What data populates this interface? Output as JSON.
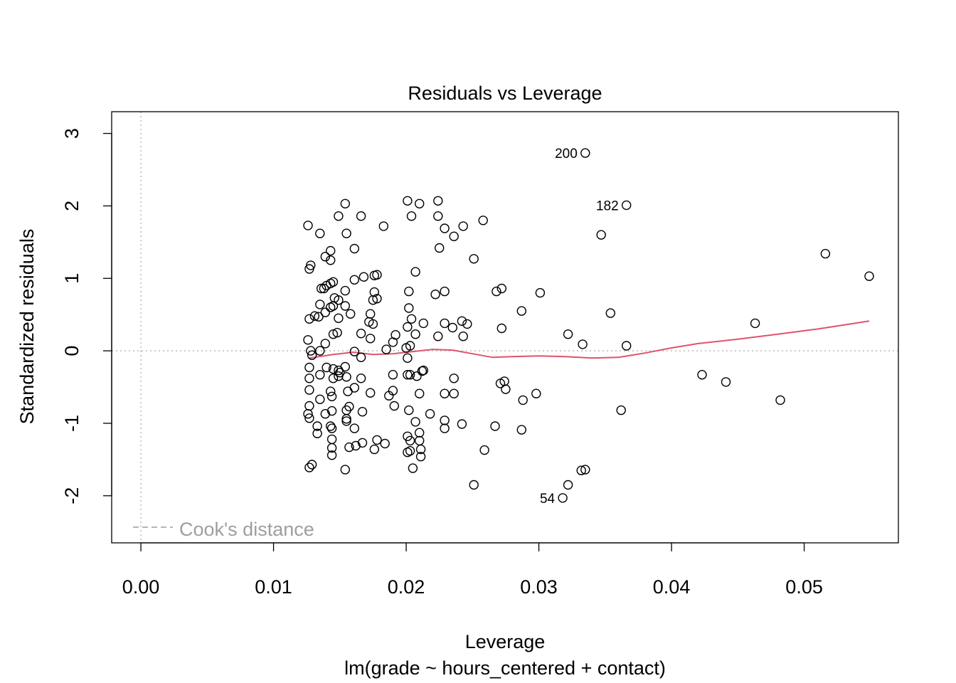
{
  "chart_data": {
    "type": "scatter",
    "title": "Residuals vs Leverage",
    "xlabel": "Leverage",
    "subtitle": "lm(grade ~ hours_centered + contact)",
    "ylabel": "Standardized residuals",
    "xlim": [
      -0.0022,
      0.0571
    ],
    "ylim": [
      -2.65,
      3.3
    ],
    "x_ticks": [
      0.0,
      0.01,
      0.02,
      0.03,
      0.04,
      0.05
    ],
    "x_tick_labels": [
      "0.00",
      "0.01",
      "0.02",
      "0.03",
      "0.04",
      "0.05"
    ],
    "y_ticks": [
      -2,
      -1,
      0,
      1,
      2,
      3
    ],
    "y_tick_labels": [
      "-2",
      "-1",
      "0",
      "1",
      "2",
      "3"
    ],
    "grid": false,
    "reference_lines": {
      "vertical_x": 0.0,
      "horizontal_y": 0.0,
      "color": "#bebebe"
    },
    "legend": {
      "position": "bottom-left",
      "label": "Cook's distance",
      "color": "#9e9e9e"
    },
    "point_labels": [
      {
        "text": "200",
        "x": 0.0335,
        "y": 2.73
      },
      {
        "text": "182",
        "x": 0.0366,
        "y": 2.01
      },
      {
        "text": "54",
        "x": 0.0318,
        "y": -2.03
      }
    ],
    "smoother": {
      "color": "#df536b",
      "x": [
        0.0127,
        0.0145,
        0.016,
        0.0175,
        0.019,
        0.0205,
        0.022,
        0.0235,
        0.025,
        0.0265,
        0.028,
        0.03,
        0.032,
        0.034,
        0.036,
        0.038,
        0.04,
        0.042,
        0.045,
        0.048,
        0.051,
        0.0549
      ],
      "y": [
        -0.1,
        -0.05,
        -0.02,
        -0.05,
        -0.04,
        -0.01,
        0.02,
        0.01,
        -0.04,
        -0.09,
        -0.08,
        -0.07,
        -0.08,
        -0.1,
        -0.09,
        -0.03,
        0.04,
        0.1,
        0.16,
        0.23,
        0.3,
        0.41
      ]
    },
    "points": [
      [
        0.0335,
        2.73
      ],
      [
        0.0366,
        2.01
      ],
      [
        0.0318,
        -2.03
      ],
      [
        0.0322,
        -1.85
      ],
      [
        0.0332,
        -1.65
      ],
      [
        0.0335,
        -1.64
      ],
      [
        0.0347,
        1.6
      ],
      [
        0.0354,
        0.52
      ],
      [
        0.0333,
        0.09
      ],
      [
        0.0322,
        0.23
      ],
      [
        0.0366,
        0.07
      ],
      [
        0.0362,
        -0.82
      ],
      [
        0.0516,
        1.34
      ],
      [
        0.0549,
        1.03
      ],
      [
        0.0463,
        0.38
      ],
      [
        0.0423,
        -0.33
      ],
      [
        0.0441,
        -0.43
      ],
      [
        0.0482,
        -0.68
      ],
      [
        0.0301,
        0.8
      ],
      [
        0.0287,
        0.55
      ],
      [
        0.0272,
        0.31
      ],
      [
        0.0271,
        -0.45
      ],
      [
        0.0274,
        -0.42
      ],
      [
        0.0275,
        -0.53
      ],
      [
        0.0288,
        -0.68
      ],
      [
        0.0298,
        -0.59
      ],
      [
        0.0287,
        -1.09
      ],
      [
        0.0267,
        -1.04
      ],
      [
        0.0259,
        -1.37
      ],
      [
        0.0251,
        -1.85
      ],
      [
        0.0258,
        1.8
      ],
      [
        0.0251,
        1.27
      ],
      [
        0.0272,
        0.86
      ],
      [
        0.0268,
        0.82
      ],
      [
        0.0243,
        1.72
      ],
      [
        0.0236,
        1.58
      ],
      [
        0.0229,
        1.69
      ],
      [
        0.0224,
        2.07
      ],
      [
        0.0224,
        1.86
      ],
      [
        0.0225,
        1.42
      ],
      [
        0.0229,
        0.82
      ],
      [
        0.0222,
        0.78
      ],
      [
        0.0201,
        2.07
      ],
      [
        0.021,
        2.03
      ],
      [
        0.0204,
        1.86
      ],
      [
        0.0207,
        1.09
      ],
      [
        0.0202,
        0.82
      ],
      [
        0.0202,
        0.59
      ],
      [
        0.0204,
        0.44
      ],
      [
        0.0213,
        0.38
      ],
      [
        0.0201,
        0.33
      ],
      [
        0.0207,
        0.23
      ],
      [
        0.0224,
        0.2
      ],
      [
        0.0203,
        0.07
      ],
      [
        0.02,
        0.04
      ],
      [
        0.0201,
        -0.1
      ],
      [
        0.0203,
        -0.33
      ],
      [
        0.0208,
        -0.35
      ],
      [
        0.0213,
        -0.27
      ],
      [
        0.0212,
        -0.28
      ],
      [
        0.0201,
        -0.33
      ],
      [
        0.021,
        -0.59
      ],
      [
        0.0202,
        -0.82
      ],
      [
        0.0207,
        -0.98
      ],
      [
        0.021,
        -1.13
      ],
      [
        0.021,
        -1.24
      ],
      [
        0.0211,
        -1.36
      ],
      [
        0.0211,
        -1.46
      ],
      [
        0.0203,
        -1.24
      ],
      [
        0.0203,
        -1.38
      ],
      [
        0.0201,
        -1.4
      ],
      [
        0.0205,
        -1.62
      ],
      [
        0.0201,
        -1.18
      ],
      [
        0.0218,
        -0.87
      ],
      [
        0.0229,
        -0.96
      ],
      [
        0.0229,
        -1.07
      ],
      [
        0.0236,
        -0.59
      ],
      [
        0.0229,
        -0.59
      ],
      [
        0.0236,
        -0.38
      ],
      [
        0.0229,
        0.38
      ],
      [
        0.0235,
        0.32
      ],
      [
        0.0242,
        0.41
      ],
      [
        0.0246,
        0.37
      ],
      [
        0.0243,
        0.2
      ],
      [
        0.0242,
        -1.01
      ],
      [
        0.0183,
        1.72
      ],
      [
        0.0176,
        1.04
      ],
      [
        0.0178,
        1.05
      ],
      [
        0.0168,
        1.02
      ],
      [
        0.0161,
        0.98
      ],
      [
        0.0176,
        0.81
      ],
      [
        0.0178,
        0.72
      ],
      [
        0.0175,
        0.7
      ],
      [
        0.0173,
        0.51
      ],
      [
        0.0172,
        0.4
      ],
      [
        0.0175,
        0.37
      ],
      [
        0.0166,
        0.24
      ],
      [
        0.0173,
        0.17
      ],
      [
        0.0192,
        0.22
      ],
      [
        0.019,
        0.12
      ],
      [
        0.0185,
        0.02
      ],
      [
        0.0161,
        -0.01
      ],
      [
        0.0166,
        -0.09
      ],
      [
        0.0166,
        -0.38
      ],
      [
        0.0173,
        -0.58
      ],
      [
        0.0167,
        -0.84
      ],
      [
        0.019,
        -0.33
      ],
      [
        0.019,
        -0.55
      ],
      [
        0.0187,
        -0.62
      ],
      [
        0.0191,
        -0.76
      ],
      [
        0.0184,
        -1.28
      ],
      [
        0.0176,
        -1.36
      ],
      [
        0.0178,
        -1.23
      ],
      [
        0.0167,
        -1.27
      ],
      [
        0.0162,
        -1.31
      ],
      [
        0.0157,
        -1.33
      ],
      [
        0.0154,
        -1.64
      ],
      [
        0.0161,
        -1.07
      ],
      [
        0.0155,
        -0.97
      ],
      [
        0.0157,
        -0.77
      ],
      [
        0.0156,
        -0.56
      ],
      [
        0.0161,
        -0.51
      ],
      [
        0.0155,
        -0.36
      ],
      [
        0.0154,
        2.03
      ],
      [
        0.0149,
        1.86
      ],
      [
        0.0166,
        1.86
      ],
      [
        0.0155,
        1.62
      ],
      [
        0.0161,
        1.41
      ],
      [
        0.0126,
        1.73
      ],
      [
        0.0135,
        1.62
      ],
      [
        0.0143,
        1.38
      ],
      [
        0.0139,
        1.3
      ],
      [
        0.0143,
        1.25
      ],
      [
        0.0127,
        1.13
      ],
      [
        0.0128,
        1.18
      ],
      [
        0.0145,
        0.95
      ],
      [
        0.0143,
        0.93
      ],
      [
        0.014,
        0.9
      ],
      [
        0.0136,
        0.86
      ],
      [
        0.0138,
        0.86
      ],
      [
        0.0154,
        0.83
      ],
      [
        0.0146,
        0.73
      ],
      [
        0.0149,
        0.7
      ],
      [
        0.0135,
        0.64
      ],
      [
        0.0143,
        0.6
      ],
      [
        0.0145,
        0.62
      ],
      [
        0.0154,
        0.62
      ],
      [
        0.0139,
        0.53
      ],
      [
        0.0158,
        0.51
      ],
      [
        0.0131,
        0.48
      ],
      [
        0.0127,
        0.44
      ],
      [
        0.0134,
        0.47
      ],
      [
        0.0149,
        0.45
      ],
      [
        0.0145,
        0.23
      ],
      [
        0.0148,
        0.25
      ],
      [
        0.0126,
        0.15
      ],
      [
        0.0139,
        0.1
      ],
      [
        0.0128,
        0.0
      ],
      [
        0.0135,
        0.0
      ],
      [
        0.0129,
        -0.06
      ],
      [
        0.0127,
        -0.23
      ],
      [
        0.014,
        -0.23
      ],
      [
        0.0145,
        -0.25
      ],
      [
        0.0149,
        -0.27
      ],
      [
        0.015,
        -0.3
      ],
      [
        0.0127,
        -0.38
      ],
      [
        0.0135,
        -0.33
      ],
      [
        0.0145,
        -0.38
      ],
      [
        0.0149,
        -0.35
      ],
      [
        0.0127,
        -0.54
      ],
      [
        0.0143,
        -0.56
      ],
      [
        0.0135,
        -0.67
      ],
      [
        0.0144,
        -0.63
      ],
      [
        0.0127,
        -0.76
      ],
      [
        0.0126,
        -0.87
      ],
      [
        0.0139,
        -0.87
      ],
      [
        0.0144,
        -0.83
      ],
      [
        0.0127,
        -0.93
      ],
      [
        0.0133,
        -1.04
      ],
      [
        0.0143,
        -1.04
      ],
      [
        0.0144,
        -1.07
      ],
      [
        0.0133,
        -1.14
      ],
      [
        0.0144,
        -1.22
      ],
      [
        0.0144,
        -1.34
      ],
      [
        0.0144,
        -1.44
      ],
      [
        0.0129,
        -1.57
      ],
      [
        0.0127,
        -1.61
      ],
      [
        0.0155,
        -0.94
      ],
      [
        0.0155,
        -0.82
      ],
      [
        0.0154,
        -0.22
      ]
    ]
  }
}
